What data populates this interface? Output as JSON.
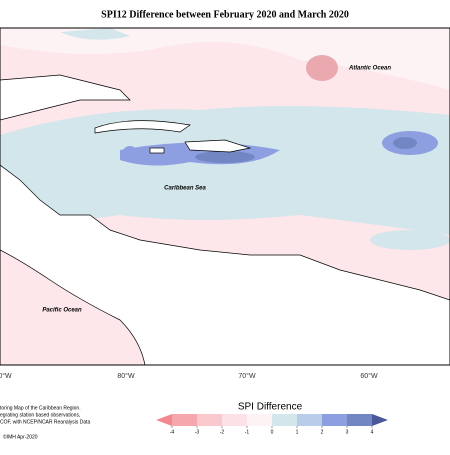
{
  "header": {
    "title": "SPI12 Difference between February 2020 and March 2020"
  },
  "map": {
    "labels": [
      "Atlantic Ocean",
      "Caribbean Sea",
      "Pacific Ocean"
    ],
    "longitudes": [
      "0°W",
      "80°W",
      "70°W",
      "60°W"
    ]
  },
  "legend": {
    "title": "SPI Difference",
    "ticks": [
      -4,
      -3,
      -2,
      -1,
      0,
      1,
      2,
      3,
      4
    ],
    "colors": [
      "#f2878f",
      "#f5a7ad",
      "#f9c9ce",
      "#fce2e6",
      "#fdf2f4",
      "#d3e6ec",
      "#b7cdea",
      "#8d9fe0",
      "#7286c4",
      "#4a5799"
    ]
  },
  "footer": {
    "lines": [
      "toring Map of the Caribbean Region.",
      "egrating station based observations,",
      "COF, with NCEP/NCAR Reanalysis Data"
    ],
    "credit": "©IMH Apr-2020"
  }
}
